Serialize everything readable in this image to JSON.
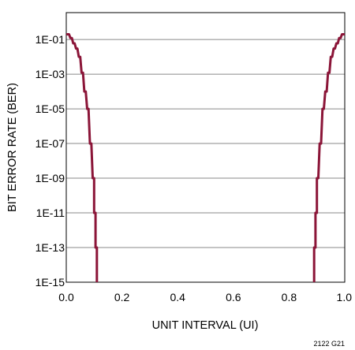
{
  "chart_data": {
    "type": "line",
    "title": "",
    "xlabel": "UNIT INTERVAL (UI)",
    "ylabel": "BIT ERROR RATE (BER)",
    "xlim": [
      0,
      1
    ],
    "ylim_log10": [
      -15,
      0
    ],
    "y_scale": "log",
    "grid": "horizontal",
    "legend": "none",
    "x_ticks": [
      "0.0",
      "0.2",
      "0.4",
      "0.6",
      "0.8",
      "1.0"
    ],
    "x_tick_values": [
      0,
      0.2,
      0.4,
      0.6,
      0.8,
      1.0
    ],
    "y_ticks": [
      "1E-01",
      "1E-03",
      "1E-05",
      "1E-07",
      "1E-09",
      "1E-11",
      "1E-13",
      "1E-15"
    ],
    "y_tick_values_log10": [
      -1,
      -3,
      -5,
      -7,
      -9,
      -11,
      -13,
      -15
    ],
    "series": [
      {
        "color": "#8b1538",
        "points": [
          [
            0.0,
            0.2
          ],
          [
            0.01,
            0.2
          ],
          [
            0.015,
            0.12
          ],
          [
            0.02,
            0.12
          ],
          [
            0.025,
            0.06
          ],
          [
            0.03,
            0.06
          ],
          [
            0.035,
            0.03
          ],
          [
            0.04,
            0.03
          ],
          [
            0.045,
            0.01
          ],
          [
            0.05,
            0.01
          ],
          [
            0.055,
            0.0012
          ],
          [
            0.06,
            0.0012
          ],
          [
            0.065,
            0.0001
          ],
          [
            0.07,
            0.0001
          ],
          [
            0.075,
            1e-05
          ],
          [
            0.08,
            1e-05
          ],
          [
            0.085,
            1e-07
          ],
          [
            0.09,
            1e-07
          ],
          [
            0.095,
            1e-09
          ],
          [
            0.1,
            1e-09
          ],
          [
            0.1,
            1e-11
          ],
          [
            0.105,
            1e-11
          ],
          [
            0.105,
            1e-13
          ],
          [
            0.11,
            1e-13
          ],
          [
            0.11,
            1e-15
          ]
        ]
      },
      {
        "color": "#8b1538",
        "points": [
          [
            1.0,
            0.2
          ],
          [
            0.99,
            0.2
          ],
          [
            0.985,
            0.12
          ],
          [
            0.98,
            0.12
          ],
          [
            0.975,
            0.06
          ],
          [
            0.97,
            0.06
          ],
          [
            0.965,
            0.03
          ],
          [
            0.96,
            0.03
          ],
          [
            0.955,
            0.01
          ],
          [
            0.95,
            0.01
          ],
          [
            0.945,
            0.0012
          ],
          [
            0.94,
            0.0012
          ],
          [
            0.935,
            0.0001
          ],
          [
            0.93,
            0.0001
          ],
          [
            0.925,
            1e-05
          ],
          [
            0.92,
            1e-05
          ],
          [
            0.915,
            1e-07
          ],
          [
            0.91,
            1e-07
          ],
          [
            0.905,
            1e-09
          ],
          [
            0.9,
            1e-09
          ],
          [
            0.9,
            1e-11
          ],
          [
            0.895,
            1e-11
          ],
          [
            0.895,
            1e-13
          ],
          [
            0.89,
            1e-13
          ],
          [
            0.89,
            1e-15
          ]
        ]
      }
    ]
  },
  "figure_code": "2122 G21"
}
